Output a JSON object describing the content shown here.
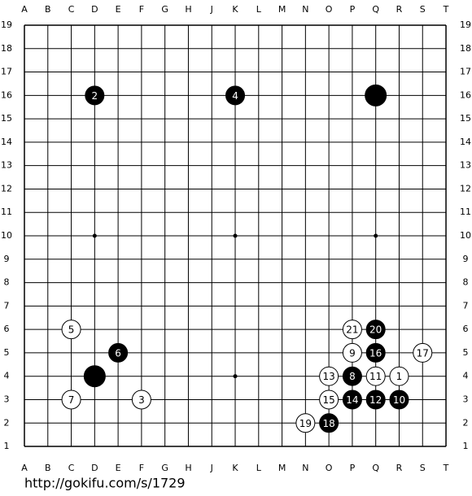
{
  "board": {
    "columns": [
      "A",
      "B",
      "C",
      "D",
      "E",
      "F",
      "G",
      "H",
      "J",
      "K",
      "L",
      "M",
      "N",
      "O",
      "P",
      "Q",
      "R",
      "S",
      "T"
    ],
    "rows": [
      19,
      18,
      17,
      16,
      15,
      14,
      13,
      12,
      11,
      10,
      9,
      8,
      7,
      6,
      5,
      4,
      3,
      2,
      1
    ],
    "stones": [
      {
        "color": "white",
        "col": "R",
        "row": 4,
        "number": 1
      },
      {
        "color": "black",
        "col": "D",
        "row": 16,
        "number": 2
      },
      {
        "color": "white",
        "col": "F",
        "row": 3,
        "number": 3
      },
      {
        "color": "black",
        "col": "K",
        "row": 16,
        "number": 4
      },
      {
        "color": "white",
        "col": "C",
        "row": 6,
        "number": 5
      },
      {
        "color": "black",
        "col": "E",
        "row": 5,
        "number": 6
      },
      {
        "color": "white",
        "col": "C",
        "row": 3,
        "number": 7
      },
      {
        "color": "black",
        "col": "P",
        "row": 4,
        "number": 8
      },
      {
        "color": "white",
        "col": "P",
        "row": 5,
        "number": 9
      },
      {
        "color": "black",
        "col": "R",
        "row": 3,
        "number": 10
      },
      {
        "color": "white",
        "col": "Q",
        "row": 4,
        "number": 11
      },
      {
        "color": "black",
        "col": "Q",
        "row": 3,
        "number": 12
      },
      {
        "color": "white",
        "col": "O",
        "row": 4,
        "number": 13
      },
      {
        "color": "black",
        "col": "P",
        "row": 3,
        "number": 14
      },
      {
        "color": "white",
        "col": "O",
        "row": 3,
        "number": 15
      },
      {
        "color": "black",
        "col": "Q",
        "row": 5,
        "number": 16
      },
      {
        "color": "white",
        "col": "S",
        "row": 5,
        "number": 17
      },
      {
        "color": "black",
        "col": "O",
        "row": 2,
        "number": 18
      },
      {
        "color": "white",
        "col": "N",
        "row": 2,
        "number": 19
      },
      {
        "color": "black",
        "col": "Q",
        "row": 6,
        "number": 20
      },
      {
        "color": "white",
        "col": "P",
        "row": 6,
        "number": 21
      },
      {
        "color": "black",
        "col": "D",
        "row": 4
      },
      {
        "color": "black",
        "col": "Q",
        "row": 16
      }
    ]
  },
  "footer": {
    "url": "http://gokifu.com/s/1729"
  }
}
